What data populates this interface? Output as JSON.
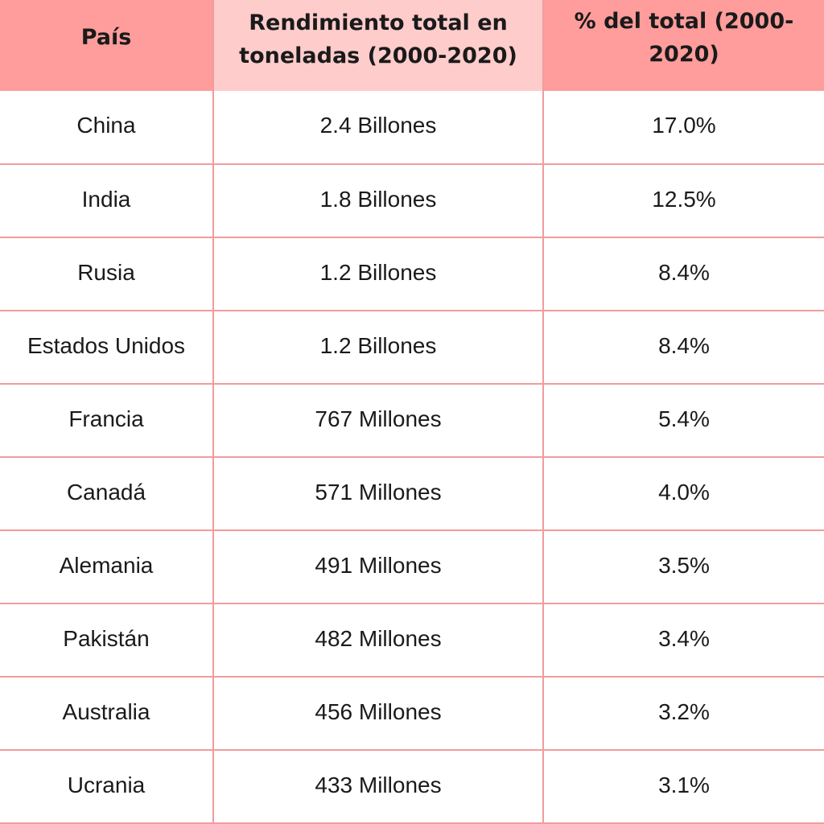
{
  "table": {
    "headers": [
      "País",
      "Rendimiento total en toneladas (2000-2020)",
      "% del total (2000-2020)"
    ],
    "rows": [
      [
        "China",
        "2.4 Billones",
        "17.0%"
      ],
      [
        "India",
        "1.8 Billones",
        "12.5%"
      ],
      [
        "Rusia",
        "1.2 Billones",
        "8.4%"
      ],
      [
        "Estados Unidos",
        "1.2 Billones",
        "8.4%"
      ],
      [
        "Francia",
        "767 Millones",
        "5.4%"
      ],
      [
        "Canadá",
        "571 Millones",
        "4.0%"
      ],
      [
        "Alemania",
        "491 Millones",
        "3.5%"
      ],
      [
        "Pakistán",
        "482 Millones",
        "3.4%"
      ],
      [
        "Australia",
        "456 Millones",
        "3.2%"
      ],
      [
        "Ucrania",
        "433 Millones",
        "3.1%"
      ]
    ]
  },
  "colors": {
    "header_dark": "#fe9d9b",
    "header_light": "#ffcccc",
    "grid_line": "#f19c9c",
    "text": "#1a1a1a"
  }
}
